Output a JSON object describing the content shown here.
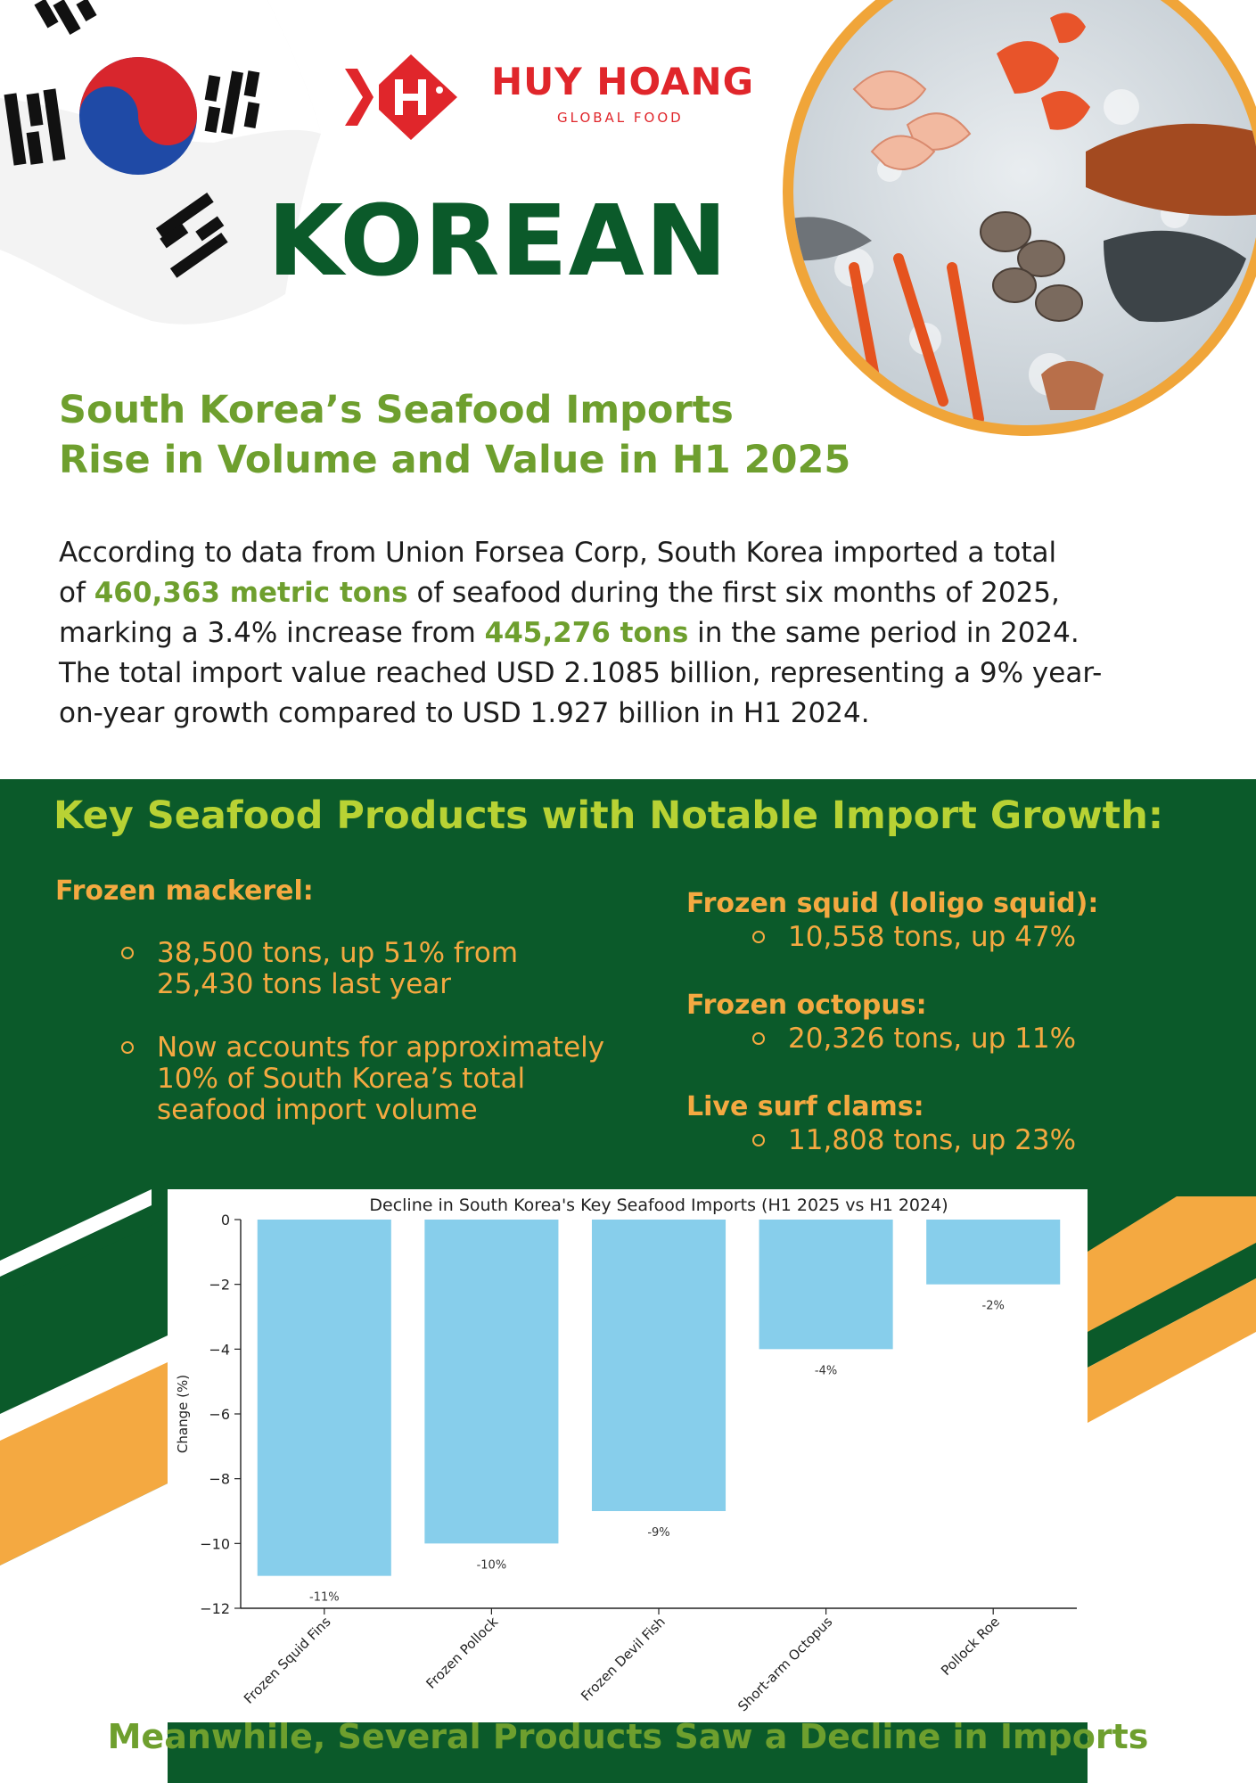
{
  "header": {
    "brand_name": "HUY HOANG",
    "brand_sub": "GLOBAL FOOD",
    "country": "KOREAN"
  },
  "intro": {
    "headline_line1": "South Korea’s Seafood Imports",
    "headline_line2": "Rise in Volume and Value in H1 2025",
    "p_line1": "According to data from Union Forsea Corp, South Korea imported a total",
    "p_line2_a": "of ",
    "p_line2_hl": "460,363 metric tons",
    "p_line2_b": " of seafood during the first six months of 2025,",
    "p_line3_a": "marking a 3.4% increase from ",
    "p_line3_hl": "445,276 tons",
    "p_line3_b": " in the same period in 2024.",
    "p_line4": "The total import value reached USD 2.1085 billion, representing a 9% year-",
    "p_line5": "on-year growth compared to USD 1.927 billion in H1 2024."
  },
  "growth": {
    "title": "Key Seafood Products with Notable Import Growth:",
    "mackerel_title": "Frozen mackerel:",
    "mackerel_b1": "38,500 tons, up 51% from 25,430 tons last year",
    "mackerel_b2": "Now accounts for approximately 10% of South Korea’s total seafood import volume",
    "squid_title": "Frozen squid (loligo squid):",
    "squid_b1": "10,558 tons, up 47%",
    "octopus_title": "Frozen octopus:",
    "octopus_b1": "20,326 tons, up 11%",
    "clams_title": "Live surf clams:",
    "clams_b1": "11,808 tons, up 23%"
  },
  "decline_title": "Meanwhile, Several Products Saw a Decline in Imports",
  "colors": {
    "green_dark": "#0b5a2a",
    "green_light": "#6e9f2e",
    "lime": "#b8d234",
    "orange": "#f4a941",
    "red": "#e0262b",
    "bar": "#87ceeb"
  },
  "chart_data": {
    "type": "bar",
    "title": "Decline in South Korea's Key Seafood Imports (H1 2025 vs H1 2024)",
    "xlabel": "",
    "ylabel": "Change (%)",
    "categories": [
      "Frozen Squid Fins",
      "Frozen Pollock",
      "Frozen Devil Fish",
      "Short-arm Octopus",
      "Pollock Roe"
    ],
    "values": [
      -11,
      -10,
      -9,
      -4,
      -2
    ],
    "data_labels": [
      "-11%",
      "-10%",
      "-9%",
      "-4%",
      "-2%"
    ],
    "ylim": [
      -12,
      0
    ],
    "yticks": [
      0,
      -2,
      -4,
      -6,
      -8,
      -10,
      -12
    ],
    "ytick_labels": [
      "0",
      "−2",
      "−4",
      "−6",
      "−8",
      "−10",
      "−12"
    ],
    "grid": false,
    "legend": "none"
  }
}
